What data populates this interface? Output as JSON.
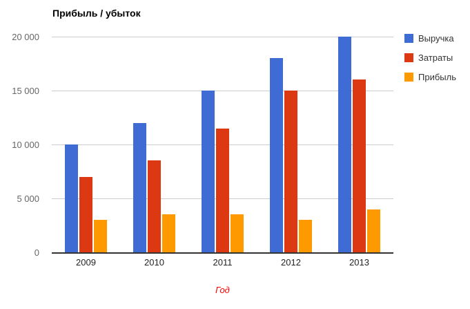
{
  "chart_data": {
    "type": "bar",
    "title": "Прибыль / убыток",
    "xlabel": "Год",
    "ylabel": "",
    "ylim": [
      0,
      20000
    ],
    "categories": [
      "2009",
      "2010",
      "2011",
      "2012",
      "2013"
    ],
    "series": [
      {
        "name": "Выручка",
        "color": "#3E6CD4",
        "values": [
          10000,
          12000,
          15000,
          18000,
          20000
        ]
      },
      {
        "name": "Затраты",
        "color": "#DC3912",
        "values": [
          7000,
          8500,
          11500,
          15000,
          16000
        ]
      },
      {
        "name": "Прибыль",
        "color": "#FF9900",
        "values": [
          3000,
          3500,
          3500,
          3000,
          4000
        ]
      }
    ],
    "yticks": [
      "0",
      "5 000",
      "10 000",
      "15 000",
      "20 000"
    ],
    "legend_position": "right",
    "grid": true
  },
  "colors": {
    "background": "#ffffff",
    "gridline": "#cccccc",
    "baseline": "#333333",
    "ytick_text": "#666666",
    "xtick_text": "#222222",
    "xlabel_text": "#ff0000",
    "title_text": "#000000",
    "legend_text": "#333333"
  }
}
